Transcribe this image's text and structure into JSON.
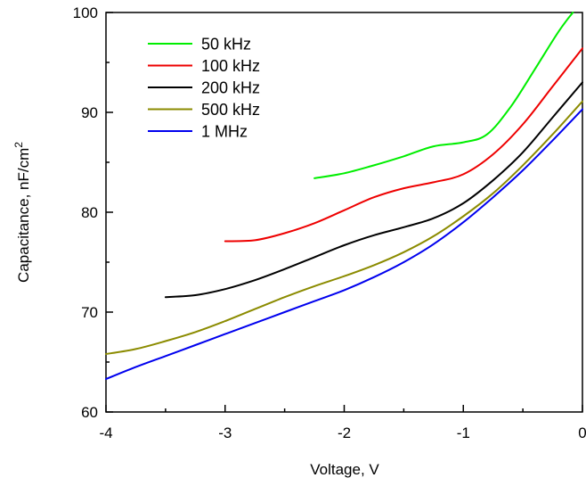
{
  "chart_data": {
    "type": "line",
    "xlabel": "Voltage, V",
    "ylabel": "Capacitance, nF/cm",
    "ylabel_sup": "2",
    "xlim": [
      -4,
      0
    ],
    "ylim": [
      60,
      100
    ],
    "xticks": [
      -4,
      -3,
      -2,
      -1,
      0
    ],
    "xtick_labels": [
      "-4",
      "-3",
      "-2",
      "-1",
      "0"
    ],
    "yticks": [
      60,
      70,
      80,
      90,
      100
    ],
    "ytick_labels": [
      "60",
      "70",
      "80",
      "90",
      "100"
    ],
    "grid": false,
    "legend_position": "top-left",
    "series": [
      {
        "name": "50 kHz",
        "color": "#00ee00",
        "x": [
          -2.25,
          -2.0,
          -1.75,
          -1.5,
          -1.25,
          -1.0,
          -0.8,
          -0.6,
          -0.4,
          -0.2,
          -0.08
        ],
        "y": [
          83.4,
          83.9,
          84.7,
          85.6,
          86.6,
          87.0,
          87.8,
          90.6,
          94.3,
          98.1,
          100.0
        ]
      },
      {
        "name": "100 kHz",
        "color": "#ee0000",
        "x": [
          -3.0,
          -2.75,
          -2.5,
          -2.25,
          -2.0,
          -1.75,
          -1.5,
          -1.25,
          -1.0,
          -0.75,
          -0.5,
          -0.25,
          0.0
        ],
        "y": [
          77.1,
          77.2,
          77.9,
          78.9,
          80.2,
          81.5,
          82.4,
          83.0,
          83.8,
          85.8,
          88.8,
          92.6,
          96.4
        ]
      },
      {
        "name": "200 kHz",
        "color": "#000000",
        "x": [
          -3.5,
          -3.25,
          -3.0,
          -2.75,
          -2.5,
          -2.25,
          -2.0,
          -1.75,
          -1.5,
          -1.25,
          -1.0,
          -0.75,
          -0.5,
          -0.25,
          0.0
        ],
        "y": [
          71.5,
          71.7,
          72.3,
          73.2,
          74.3,
          75.5,
          76.7,
          77.7,
          78.5,
          79.4,
          80.9,
          83.2,
          86.0,
          89.5,
          93.0
        ]
      },
      {
        "name": "500 kHz",
        "color": "#8b8b00",
        "x": [
          -4.0,
          -3.75,
          -3.5,
          -3.25,
          -3.0,
          -2.75,
          -2.5,
          -2.25,
          -2.0,
          -1.75,
          -1.5,
          -1.25,
          -1.0,
          -0.75,
          -0.5,
          -0.25,
          0.0
        ],
        "y": [
          65.8,
          66.3,
          67.1,
          68.0,
          69.1,
          70.3,
          71.5,
          72.6,
          73.6,
          74.7,
          76.0,
          77.6,
          79.6,
          81.9,
          84.7,
          87.8,
          91.1
        ]
      },
      {
        "name": "1 MHz",
        "color": "#0000ee",
        "x": [
          -4.0,
          -3.75,
          -3.5,
          -3.25,
          -3.0,
          -2.75,
          -2.5,
          -2.25,
          -2.0,
          -1.75,
          -1.5,
          -1.25,
          -1.0,
          -0.75,
          -0.5,
          -0.25,
          0.0
        ],
        "y": [
          63.3,
          64.5,
          65.6,
          66.7,
          67.8,
          68.9,
          70.0,
          71.1,
          72.2,
          73.5,
          75.0,
          76.8,
          79.0,
          81.5,
          84.2,
          87.2,
          90.3
        ]
      }
    ]
  }
}
